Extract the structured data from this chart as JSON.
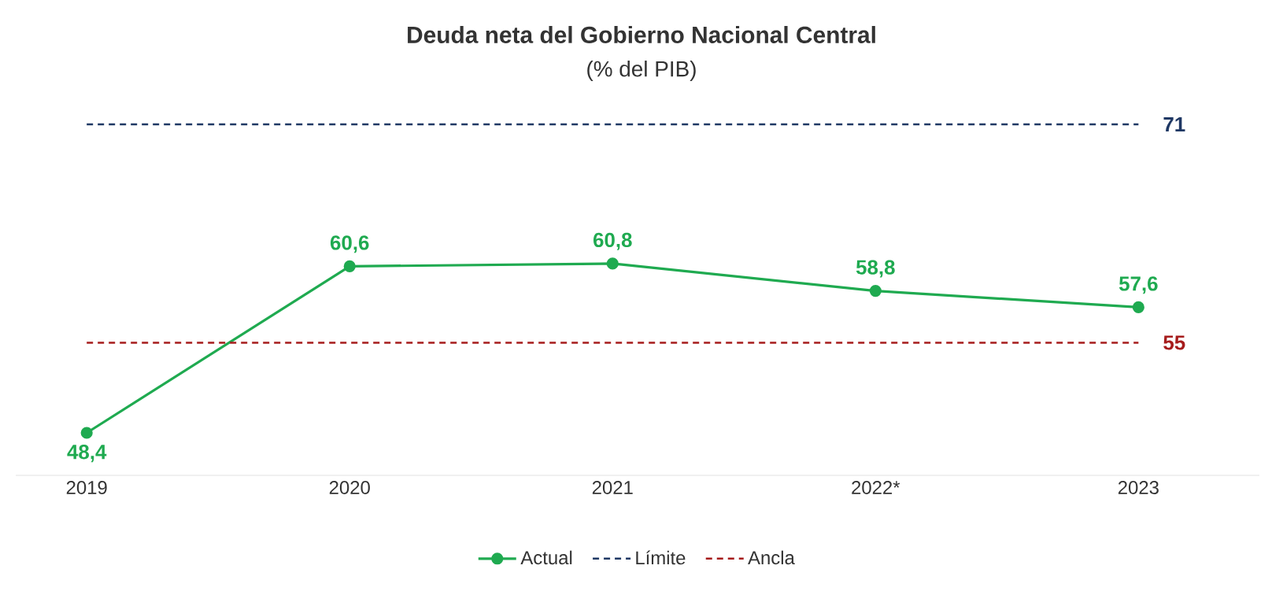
{
  "chart_data": {
    "type": "line",
    "title": "Deuda neta del Gobierno Nacional Central",
    "subtitle": "(% del PIB)",
    "categories": [
      "2019",
      "2020",
      "2021",
      "2022*",
      "2023"
    ],
    "tick_labels": "x",
    "legend": "bottom",
    "grid": false,
    "series": [
      {
        "name": "Actual",
        "color": "#1faa50",
        "values": [
          48.4,
          60.6,
          60.8,
          58.8,
          57.6
        ],
        "marker": "circle",
        "line_style": "solid",
        "value_labels": [
          "48,4",
          "60,6",
          "60,8",
          "58,8",
          "57,6"
        ]
      },
      {
        "name": "Límite",
        "color": "#1f3864",
        "values": [
          71,
          71,
          71,
          71,
          71
        ],
        "marker": "none",
        "line_style": "dashed",
        "value_labels": [
          null,
          null,
          null,
          null,
          "71"
        ]
      },
      {
        "name": "Ancla",
        "color": "#a61c1c",
        "values": [
          55,
          55,
          55,
          55,
          55
        ],
        "marker": "none",
        "line_style": "dashed",
        "value_labels": [
          null,
          null,
          null,
          null,
          "55"
        ]
      }
    ]
  }
}
